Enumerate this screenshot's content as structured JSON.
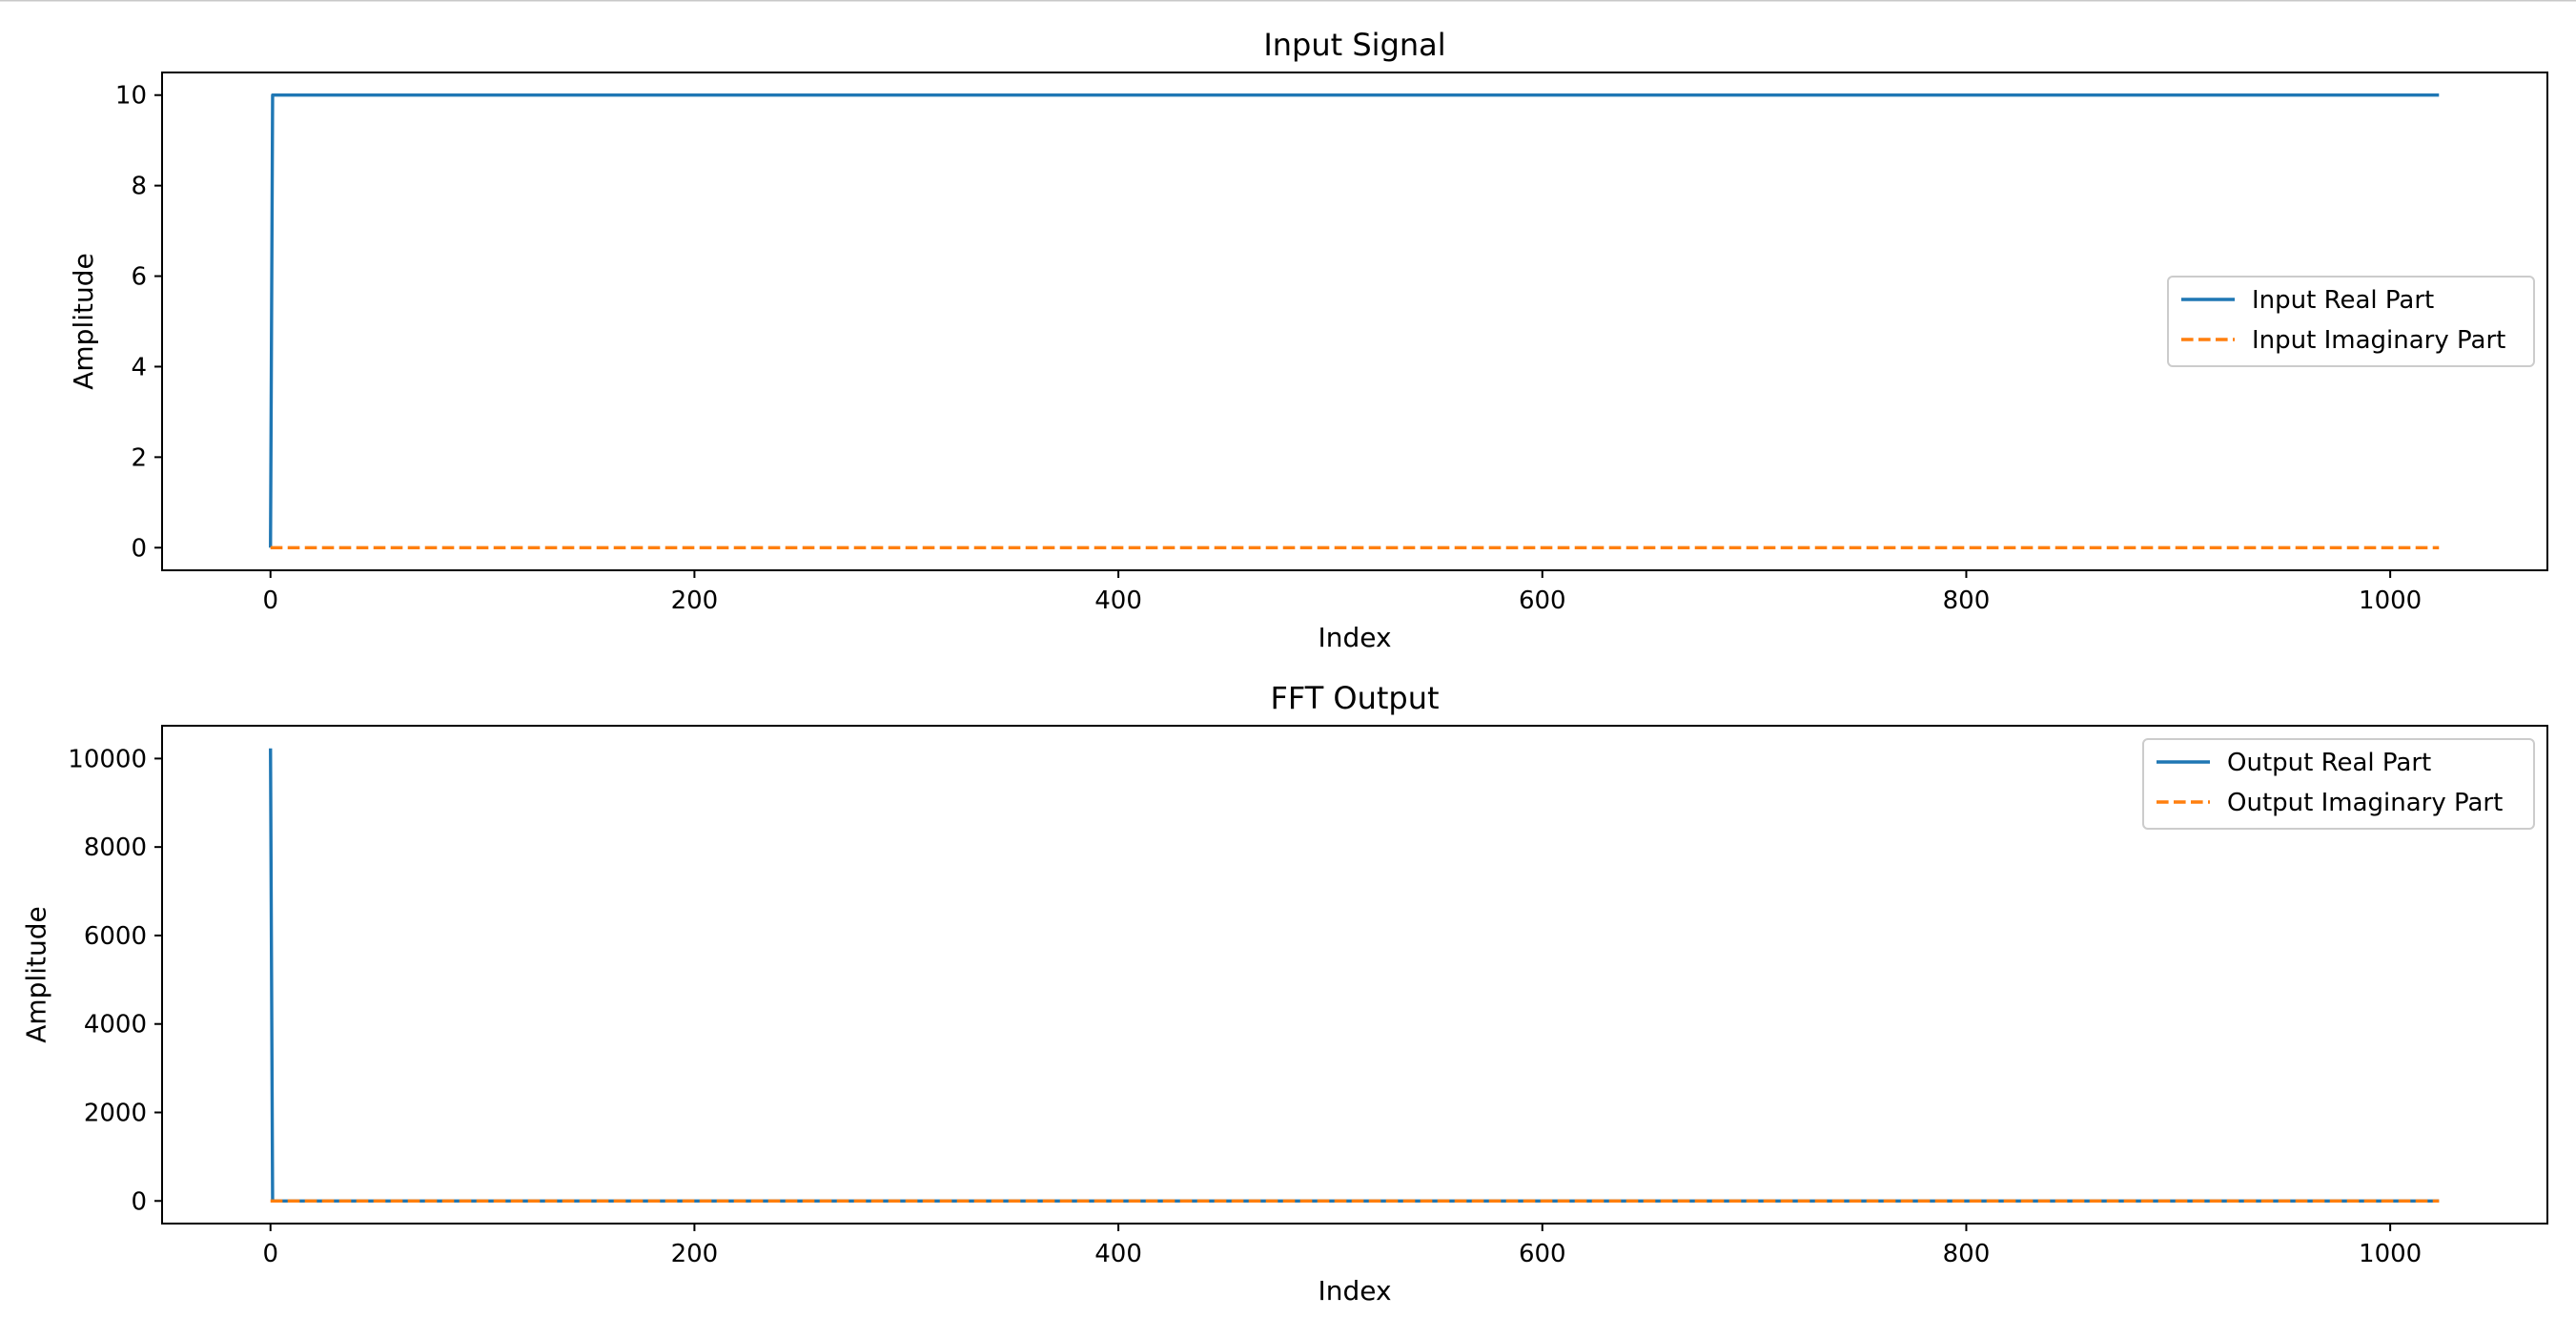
{
  "chart_data": [
    {
      "type": "line",
      "title": "Input Signal",
      "xlabel": "Index",
      "ylabel": "Amplitude",
      "xlim": [
        -51.15,
        1074.15
      ],
      "ylim": [
        -0.5,
        10.5
      ],
      "xticks": [
        0,
        200,
        400,
        600,
        800,
        1000
      ],
      "yticks": [
        0,
        2,
        4,
        6,
        8,
        10
      ],
      "grid": false,
      "legend_position": "center-right",
      "series": [
        {
          "name": "Input Real Part",
          "color": "#1f77b4",
          "style": "solid",
          "points": [
            [
              0,
              0
            ],
            [
              1,
              10
            ],
            [
              1023,
              10
            ]
          ]
        },
        {
          "name": "Input Imaginary Part",
          "color": "#ff7f0e",
          "style": "dashed",
          "points": [
            [
              0,
              0
            ],
            [
              1023,
              0
            ]
          ]
        }
      ]
    },
    {
      "type": "line",
      "title": "FFT Output",
      "xlabel": "Index",
      "ylabel": "Amplitude",
      "xlim": [
        -51.15,
        1074.15
      ],
      "ylim": [
        -511.5,
        10741.5
      ],
      "xticks": [
        0,
        200,
        400,
        600,
        800,
        1000
      ],
      "yticks": [
        0,
        2000,
        4000,
        6000,
        8000,
        10000
      ],
      "grid": false,
      "legend_position": "top-right",
      "series": [
        {
          "name": "Output Real Part",
          "color": "#1f77b4",
          "style": "solid",
          "points": [
            [
              0,
              10230
            ],
            [
              1,
              0
            ],
            [
              1023,
              0
            ]
          ]
        },
        {
          "name": "Output Imaginary Part",
          "color": "#ff7f0e",
          "style": "dashed",
          "points": [
            [
              0,
              0
            ],
            [
              1023,
              0
            ]
          ]
        }
      ]
    }
  ]
}
